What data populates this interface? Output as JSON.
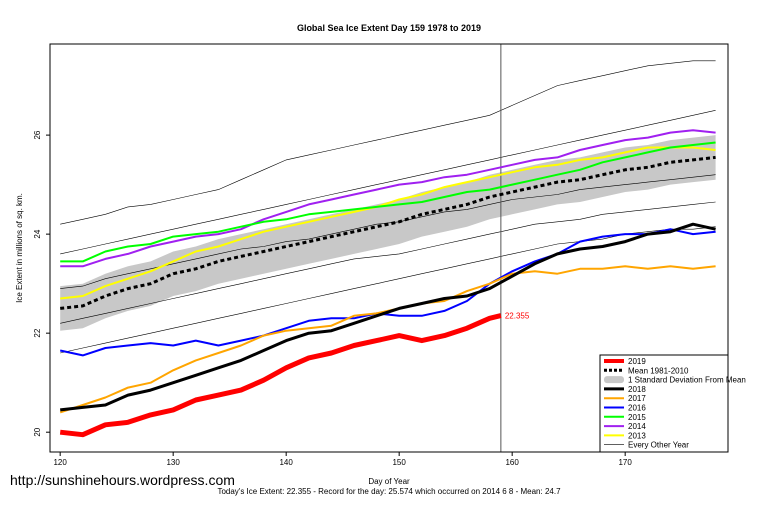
{
  "chart_data": {
    "type": "line",
    "title": "Global Sea Ice Extent Day 159 1978 to 2019",
    "x_label": "Day of Year",
    "y_label": "Ice Extent in millions of sq. km.",
    "footer": "Today's Ice Extent: 22.355  - Record for the day: 25.574 which occurred on 2014 6 8  - Mean: 24.7",
    "watermark": "http://sunshinehours.wordpress.com",
    "xlim": [
      119.1,
      179.1
    ],
    "ylim": [
      19.6,
      27.84
    ],
    "xticks": [
      120,
      130,
      140,
      150,
      160,
      170
    ],
    "yticks": [
      20,
      22,
      24,
      26
    ],
    "marker_x": 159,
    "legend": "lower right",
    "x": [
      120,
      122,
      124,
      126,
      128,
      130,
      132,
      134,
      136,
      138,
      140,
      142,
      144,
      146,
      148,
      150,
      152,
      154,
      156,
      158,
      160,
      162,
      164,
      166,
      168,
      170,
      172,
      174,
      176,
      178
    ],
    "band": {
      "name": "1 Standard Deviation From Mean",
      "color": "#c8c8c8",
      "lower": [
        22.05,
        22.1,
        22.3,
        22.45,
        22.55,
        22.75,
        22.85,
        23.0,
        23.1,
        23.2,
        23.3,
        23.4,
        23.5,
        23.6,
        23.7,
        23.8,
        23.95,
        24.05,
        24.15,
        24.3,
        24.4,
        24.5,
        24.6,
        24.65,
        24.75,
        24.85,
        24.9,
        25.0,
        25.05,
        25.1
      ],
      "upper": [
        22.95,
        23.0,
        23.2,
        23.35,
        23.45,
        23.65,
        23.75,
        23.9,
        24.0,
        24.1,
        24.2,
        24.3,
        24.4,
        24.5,
        24.6,
        24.7,
        24.85,
        24.95,
        25.05,
        25.2,
        25.3,
        25.4,
        25.5,
        25.55,
        25.65,
        25.75,
        25.8,
        25.9,
        25.95,
        26.0
      ]
    },
    "other_years": {
      "name": "Every Other Year",
      "color": "#000000",
      "lines": [
        [
          24.2,
          24.3,
          24.4,
          24.55,
          24.6,
          24.7,
          24.8,
          24.9,
          25.1,
          25.3,
          25.5,
          25.6,
          25.7,
          25.8,
          25.9,
          26.0,
          26.1,
          26.2,
          26.3,
          26.4,
          26.6,
          26.8,
          27.0,
          27.1,
          27.2,
          27.3,
          27.4,
          27.45,
          27.5,
          27.5
        ],
        [
          23.6,
          23.7,
          23.8,
          23.9,
          24.0,
          24.1,
          24.2,
          24.3,
          24.4,
          24.5,
          24.6,
          24.7,
          24.8,
          24.9,
          25.0,
          25.1,
          25.2,
          25.3,
          25.4,
          25.5,
          25.6,
          25.7,
          25.8,
          25.9,
          26.0,
          26.1,
          26.2,
          26.3,
          26.4,
          26.5
        ],
        [
          22.9,
          22.95,
          23.1,
          23.2,
          23.3,
          23.4,
          23.5,
          23.6,
          23.7,
          23.75,
          23.85,
          23.9,
          24.0,
          24.1,
          24.2,
          24.25,
          24.35,
          24.45,
          24.5,
          24.6,
          24.7,
          24.75,
          24.8,
          24.9,
          24.95,
          25.0,
          25.05,
          25.1,
          25.15,
          25.2
        ],
        [
          22.2,
          22.3,
          22.4,
          22.5,
          22.6,
          22.7,
          22.8,
          22.9,
          23.0,
          23.1,
          23.2,
          23.3,
          23.4,
          23.5,
          23.55,
          23.6,
          23.7,
          23.8,
          23.9,
          24.0,
          24.1,
          24.2,
          24.25,
          24.3,
          24.4,
          24.45,
          24.5,
          24.55,
          24.6,
          24.65
        ],
        [
          21.6,
          21.7,
          21.8,
          21.9,
          22.0,
          22.1,
          22.2,
          22.3,
          22.4,
          22.5,
          22.6,
          22.7,
          22.8,
          22.9,
          23.0,
          23.1,
          23.2,
          23.3,
          23.4,
          23.5,
          23.6,
          23.7,
          23.8,
          23.85,
          23.9,
          24.0,
          24.05,
          24.1,
          24.1,
          24.15
        ]
      ]
    },
    "series": [
      {
        "name": "2019",
        "color": "#ff0000",
        "width": 5,
        "x": [
          120,
          122,
          124,
          126,
          128,
          130,
          132,
          134,
          136,
          138,
          140,
          142,
          144,
          146,
          148,
          150,
          152,
          154,
          156,
          158,
          159
        ],
        "values": [
          20.0,
          19.95,
          20.15,
          20.2,
          20.35,
          20.45,
          20.65,
          20.75,
          20.85,
          21.05,
          21.3,
          21.5,
          21.6,
          21.75,
          21.85,
          21.95,
          21.85,
          21.95,
          22.1,
          22.3,
          22.355
        ],
        "end_label": "22.355"
      },
      {
        "name": "Mean 1981-2010",
        "color": "#000000",
        "width": 3,
        "dash": true,
        "values": [
          22.5,
          22.55,
          22.75,
          22.9,
          23.0,
          23.2,
          23.3,
          23.45,
          23.55,
          23.65,
          23.75,
          23.85,
          23.95,
          24.05,
          24.15,
          24.25,
          24.4,
          24.5,
          24.6,
          24.75,
          24.85,
          24.95,
          25.05,
          25.1,
          25.2,
          25.3,
          25.35,
          25.45,
          25.5,
          25.55
        ]
      },
      {
        "name": "2018",
        "color": "#000000",
        "width": 3,
        "values": [
          20.45,
          20.5,
          20.55,
          20.75,
          20.85,
          21.0,
          21.15,
          21.3,
          21.45,
          21.65,
          21.85,
          22.0,
          22.05,
          22.2,
          22.35,
          22.5,
          22.6,
          22.7,
          22.75,
          22.9,
          23.15,
          23.4,
          23.6,
          23.7,
          23.75,
          23.85,
          24.0,
          24.05,
          24.2,
          24.1
        ]
      },
      {
        "name": "2017",
        "color": "#ffa500",
        "width": 2,
        "values": [
          20.4,
          20.55,
          20.7,
          20.9,
          21.0,
          21.25,
          21.45,
          21.6,
          21.75,
          21.95,
          22.05,
          22.1,
          22.15,
          22.35,
          22.4,
          22.5,
          22.6,
          22.65,
          22.85,
          23.0,
          23.2,
          23.25,
          23.2,
          23.3,
          23.3,
          23.35,
          23.3,
          23.35,
          23.3,
          23.35
        ]
      },
      {
        "name": "2016",
        "color": "#0000ff",
        "width": 2,
        "values": [
          21.65,
          21.55,
          21.7,
          21.75,
          21.8,
          21.75,
          21.85,
          21.75,
          21.85,
          21.95,
          22.1,
          22.25,
          22.3,
          22.3,
          22.4,
          22.35,
          22.35,
          22.45,
          22.65,
          23.0,
          23.25,
          23.45,
          23.6,
          23.85,
          23.95,
          24.0,
          24.0,
          24.1,
          24.0,
          24.05
        ]
      },
      {
        "name": "2015",
        "color": "#00ff00",
        "width": 2,
        "values": [
          23.45,
          23.45,
          23.65,
          23.75,
          23.8,
          23.95,
          24.0,
          24.05,
          24.15,
          24.25,
          24.3,
          24.4,
          24.45,
          24.5,
          24.55,
          24.6,
          24.65,
          24.75,
          24.85,
          24.9,
          25.0,
          25.1,
          25.2,
          25.3,
          25.45,
          25.55,
          25.65,
          25.75,
          25.8,
          25.85
        ]
      },
      {
        "name": "2014",
        "color": "#a020f0",
        "width": 2,
        "values": [
          23.35,
          23.35,
          23.5,
          23.6,
          23.75,
          23.85,
          23.95,
          24.0,
          24.1,
          24.3,
          24.45,
          24.6,
          24.7,
          24.8,
          24.9,
          25.0,
          25.05,
          25.15,
          25.2,
          25.3,
          25.4,
          25.5,
          25.55,
          25.7,
          25.8,
          25.9,
          25.95,
          26.05,
          26.1,
          26.05
        ]
      },
      {
        "name": "2013",
        "color": "#ffff00",
        "width": 2,
        "values": [
          22.7,
          22.75,
          22.95,
          23.1,
          23.25,
          23.45,
          23.65,
          23.75,
          23.9,
          24.05,
          24.15,
          24.25,
          24.35,
          24.45,
          24.55,
          24.7,
          24.8,
          24.95,
          25.05,
          25.15,
          25.25,
          25.35,
          25.4,
          25.5,
          25.55,
          25.65,
          25.75,
          25.75,
          25.75,
          25.7
        ]
      }
    ]
  }
}
